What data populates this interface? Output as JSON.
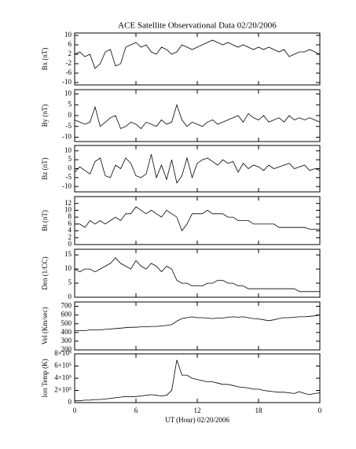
{
  "chart_data": [
    {
      "type": "line",
      "title": "ACE Satellite Observational Data  02/20/2006",
      "ylabel": "Bx (nT)",
      "ylim": [
        -11,
        11
      ],
      "yticks": [
        -10,
        -6,
        -2,
        2,
        6,
        10
      ],
      "color": "#000000",
      "x": [
        0,
        0.5,
        1,
        1.5,
        2,
        2.5,
        3,
        3.5,
        4,
        4.5,
        5,
        5.5,
        6,
        6.5,
        7,
        7.5,
        8,
        8.5,
        9,
        9.5,
        10,
        10.5,
        11,
        11.5,
        12,
        12.5,
        13,
        13.5,
        14,
        14.5,
        15,
        15.5,
        16,
        16.5,
        17,
        17.5,
        18,
        18.5,
        19,
        19.5,
        20,
        20.5,
        21,
        21.5,
        22,
        22.5,
        23,
        23.5,
        24
      ],
      "values": [
        2,
        3,
        1,
        2,
        -4,
        -2,
        3,
        4,
        -3,
        -2,
        5,
        6,
        7,
        5,
        6,
        3,
        2,
        5,
        4,
        2,
        3,
        6,
        5,
        4,
        5,
        6,
        7,
        8,
        7,
        6,
        7,
        6,
        5,
        6,
        5,
        4,
        5,
        4,
        5,
        4,
        3,
        4,
        1,
        2,
        3,
        3,
        4,
        3,
        2
      ]
    },
    {
      "type": "line",
      "ylabel": "By (nT)",
      "ylim": [
        -12,
        12
      ],
      "yticks": [
        -10,
        -5,
        0,
        5,
        10
      ],
      "color": "#000000",
      "x": [
        0,
        0.5,
        1,
        1.5,
        2,
        2.5,
        3,
        3.5,
        4,
        4.5,
        5,
        5.5,
        6,
        6.5,
        7,
        7.5,
        8,
        8.5,
        9,
        9.5,
        10,
        10.5,
        11,
        11.5,
        12,
        12.5,
        13,
        13.5,
        14,
        14.5,
        15,
        15.5,
        16,
        16.5,
        17,
        17.5,
        18,
        18.5,
        19,
        19.5,
        20,
        20.5,
        21,
        21.5,
        22,
        22.5,
        23,
        23.5,
        24
      ],
      "values": [
        -2,
        -3,
        -4,
        -3,
        4,
        -5,
        -3,
        -1,
        0,
        -6,
        -5,
        -3,
        -4,
        -6,
        -3,
        -4,
        -5,
        -2,
        -4,
        -3,
        5,
        -2,
        -5,
        -3,
        -4,
        -5,
        -3,
        -2,
        -4,
        -3,
        -2,
        -1,
        0,
        -3,
        1,
        -1,
        -2,
        0,
        -3,
        -2,
        -1,
        -3,
        0,
        -2,
        -1,
        -2,
        -1,
        -2,
        -3
      ]
    },
    {
      "type": "line",
      "ylabel": "Bz (nT)",
      "ylim": [
        -13,
        13
      ],
      "yticks": [
        -10,
        -5,
        0,
        5,
        10
      ],
      "color": "#000000",
      "x": [
        0,
        0.5,
        1,
        1.5,
        2,
        2.5,
        3,
        3.5,
        4,
        4.5,
        5,
        5.5,
        6,
        6.5,
        7,
        7.5,
        8,
        8.5,
        9,
        9.5,
        10,
        10.5,
        11,
        11.5,
        12,
        12.5,
        13,
        13.5,
        14,
        14.5,
        15,
        15.5,
        16,
        16.5,
        17,
        17.5,
        18,
        18.5,
        19,
        19.5,
        20,
        20.5,
        21,
        21.5,
        22,
        22.5,
        23,
        23.5,
        24
      ],
      "values": [
        -2,
        1,
        -1,
        -3,
        4,
        6,
        -4,
        -5,
        2,
        0,
        6,
        3,
        -4,
        -5,
        -3,
        8,
        -5,
        2,
        -6,
        5,
        -8,
        -4,
        6,
        -5,
        3,
        5,
        6,
        4,
        2,
        5,
        3,
        4,
        -2,
        3,
        0,
        2,
        1,
        -1,
        2,
        0,
        1,
        2,
        3,
        0,
        1,
        2,
        -1,
        0,
        -1
      ]
    },
    {
      "type": "line",
      "ylabel": "Bt (nT)",
      "ylim": [
        0,
        14
      ],
      "yticks": [
        0,
        2,
        4,
        6,
        8,
        10,
        12
      ],
      "color": "#000000",
      "x": [
        0,
        0.5,
        1,
        1.5,
        2,
        2.5,
        3,
        3.5,
        4,
        4.5,
        5,
        5.5,
        6,
        6.5,
        7,
        7.5,
        8,
        8.5,
        9,
        9.5,
        10,
        10.5,
        11,
        11.5,
        12,
        12.5,
        13,
        13.5,
        14,
        14.5,
        15,
        15.5,
        16,
        16.5,
        17,
        17.5,
        18,
        18.5,
        19,
        19.5,
        20,
        20.5,
        21,
        21.5,
        22,
        22.5,
        23,
        23.5,
        24
      ],
      "values": [
        6,
        6,
        5,
        7,
        6,
        7,
        6,
        7,
        8,
        7,
        9,
        9,
        11,
        10,
        9,
        10,
        9,
        8,
        10,
        9,
        8,
        4,
        6,
        9,
        9,
        9,
        10,
        9,
        9,
        9,
        8,
        8,
        7,
        7,
        7,
        6,
        6,
        6,
        6,
        6,
        5,
        5,
        5,
        5,
        5,
        5,
        4.5,
        4.5,
        4.5
      ]
    },
    {
      "type": "line",
      "ylabel": "Den (1/CC)",
      "ylim": [
        0,
        17
      ],
      "yticks": [
        0,
        5,
        10,
        15
      ],
      "color": "#000000",
      "x": [
        0,
        0.5,
        1,
        1.5,
        2,
        2.5,
        3,
        3.5,
        4,
        4.5,
        5,
        5.5,
        6,
        6.5,
        7,
        7.5,
        8,
        8.5,
        9,
        9.5,
        10,
        10.5,
        11,
        11.5,
        12,
        12.5,
        13,
        13.5,
        14,
        14.5,
        15,
        15.5,
        16,
        16.5,
        17,
        17.5,
        18,
        18.5,
        19,
        19.5,
        20,
        20.5,
        21,
        21.5,
        22,
        22.5,
        23,
        23.5,
        24
      ],
      "values": [
        10,
        9,
        10,
        10,
        9,
        10,
        11,
        12,
        14,
        12,
        11,
        10,
        13,
        11,
        10,
        12,
        11,
        9,
        11,
        10,
        6,
        5,
        5,
        4,
        4,
        4,
        5,
        5,
        6,
        6,
        5,
        5,
        4,
        4,
        3,
        3,
        3,
        3,
        3,
        3,
        3,
        3,
        3,
        3,
        2,
        2,
        2,
        2,
        2
      ]
    },
    {
      "type": "line",
      "ylabel": "Vel (Km/sec)",
      "ylim": [
        200,
        750
      ],
      "yticks": [
        200,
        300,
        400,
        500,
        600,
        700
      ],
      "color": "#000000",
      "x": [
        0,
        0.5,
        1,
        1.5,
        2,
        2.5,
        3,
        3.5,
        4,
        4.5,
        5,
        5.5,
        6,
        6.5,
        7,
        7.5,
        8,
        8.5,
        9,
        9.5,
        10,
        10.5,
        11,
        11.5,
        12,
        12.5,
        13,
        13.5,
        14,
        14.5,
        15,
        15.5,
        16,
        16.5,
        17,
        17.5,
        18,
        18.5,
        19,
        19.5,
        20,
        20.5,
        21,
        21.5,
        22,
        22.5,
        23,
        23.5,
        24
      ],
      "values": [
        420,
        420,
        420,
        430,
        430,
        430,
        435,
        440,
        445,
        450,
        455,
        460,
        460,
        465,
        465,
        470,
        470,
        475,
        480,
        490,
        530,
        560,
        570,
        580,
        570,
        570,
        565,
        560,
        565,
        565,
        575,
        580,
        575,
        580,
        570,
        560,
        555,
        545,
        535,
        545,
        560,
        570,
        570,
        575,
        580,
        580,
        585,
        590,
        600
      ]
    },
    {
      "type": "line",
      "ylabel": "Ion Temp (K)",
      "xlabel": "UT (Hour)   02/20/2006",
      "ylim": [
        0,
        800000
      ],
      "yticks": [
        0,
        {
          "value": 200000,
          "label": "2×10⁵"
        },
        {
          "value": 400000,
          "label": "4×10⁵"
        },
        {
          "value": 600000,
          "label": "6×10⁵"
        },
        {
          "value": 800000,
          "label": "8×10⁵"
        }
      ],
      "xlim": [
        0,
        24
      ],
      "xticks": [
        0,
        6,
        12,
        18,
        {
          "value": 24,
          "label": "0"
        }
      ],
      "color": "#000000",
      "x": [
        0,
        0.5,
        1,
        1.5,
        2,
        2.5,
        3,
        3.5,
        4,
        4.5,
        5,
        5.5,
        6,
        6.5,
        7,
        7.5,
        8,
        8.5,
        9,
        9.5,
        10,
        10.5,
        11,
        11.5,
        12,
        12.5,
        13,
        13.5,
        14,
        14.5,
        15,
        15.5,
        16,
        16.5,
        17,
        17.5,
        18,
        18.5,
        19,
        19.5,
        20,
        20.5,
        21,
        21.5,
        22,
        22.5,
        23,
        23.5,
        24
      ],
      "values": [
        30000,
        30000,
        40000,
        40000,
        50000,
        50000,
        60000,
        70000,
        80000,
        90000,
        100000,
        100000,
        100000,
        110000,
        120000,
        130000,
        120000,
        110000,
        120000,
        200000,
        700000,
        450000,
        450000,
        400000,
        380000,
        360000,
        340000,
        340000,
        320000,
        300000,
        300000,
        280000,
        260000,
        250000,
        240000,
        220000,
        220000,
        200000,
        190000,
        180000,
        170000,
        170000,
        160000,
        150000,
        180000,
        150000,
        130000,
        150000,
        160000
      ]
    }
  ]
}
